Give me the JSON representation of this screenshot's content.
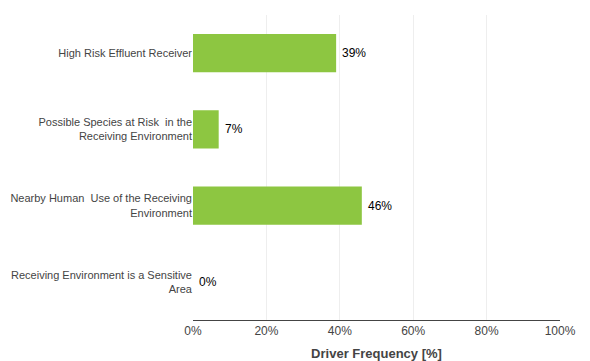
{
  "chart_data": {
    "type": "bar",
    "orientation": "horizontal",
    "categories": [
      "Receiving Environment is a Sensitive\nArea",
      "Nearby Human  Use of the Receiving\nEnvironment",
      "Possible Species at Risk  in the\nReceiving Environment",
      "High Risk Effluent Receiver"
    ],
    "values": [
      0,
      46,
      7,
      39
    ],
    "value_labels": [
      "0%",
      "46%",
      "7%",
      "39%"
    ],
    "data_labels": true,
    "color": "#8DC641",
    "x_label": "Driver Frequency [%]",
    "xlim": [
      0,
      100
    ],
    "xticks": [
      {
        "value": 0,
        "label": "0%"
      },
      {
        "value": 20,
        "label": "20%"
      },
      {
        "value": 40,
        "label": "40%"
      },
      {
        "value": 60,
        "label": "60%"
      },
      {
        "value": 80,
        "label": "80%"
      },
      {
        "value": 100,
        "label": "100%"
      }
    ],
    "grid": true
  }
}
